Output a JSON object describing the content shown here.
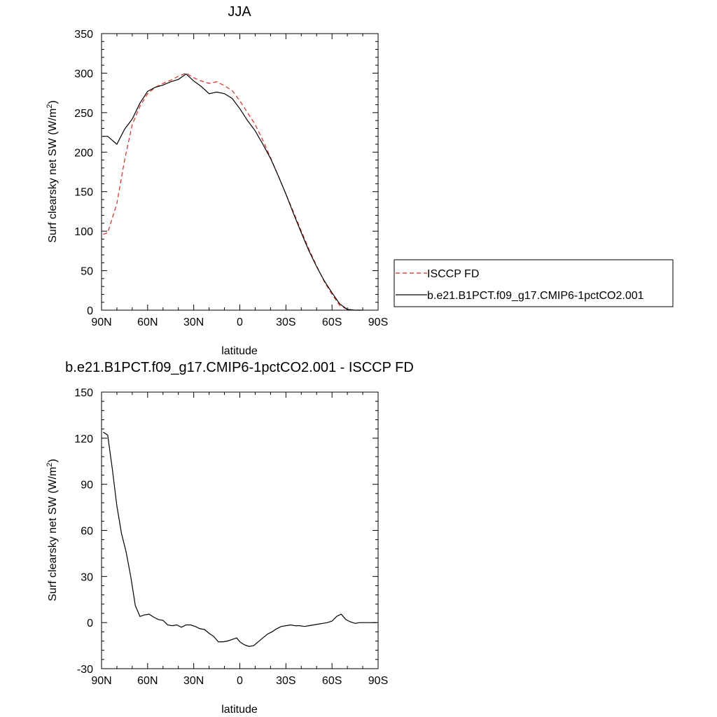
{
  "chart_data": [
    {
      "type": "line",
      "title": "JJA",
      "xlabel": "latitude",
      "ylabel": "Surf clearsky net SW (W/m",
      "ylabel_sup": "2",
      "ylabel_close": ")",
      "xlim": [
        90,
        -90
      ],
      "ylim": [
        0,
        350
      ],
      "x_ticks": [
        {
          "v": 90,
          "label": "90N"
        },
        {
          "v": 60,
          "label": "60N"
        },
        {
          "v": 30,
          "label": "30N"
        },
        {
          "v": 0,
          "label": "0"
        },
        {
          "v": -30,
          "label": "30S"
        },
        {
          "v": -60,
          "label": "60S"
        },
        {
          "v": -90,
          "label": "90S"
        }
      ],
      "y_ticks": [
        {
          "v": 0,
          "label": "0"
        },
        {
          "v": 50,
          "label": "50"
        },
        {
          "v": 100,
          "label": "100"
        },
        {
          "v": 150,
          "label": "150"
        },
        {
          "v": 200,
          "label": "200"
        },
        {
          "v": 250,
          "label": "250"
        },
        {
          "v": 300,
          "label": "300"
        },
        {
          "v": 350,
          "label": "350"
        }
      ],
      "legend": "right",
      "series": [
        {
          "name": "ISCCP FD",
          "color": "#e8261b",
          "dash": true,
          "x": [
            89,
            86,
            80,
            75,
            70,
            65,
            60,
            55,
            50,
            45,
            40,
            35,
            30,
            25,
            20,
            15,
            10,
            5,
            0,
            -5,
            -10,
            -15,
            -20,
            -25,
            -30,
            -35,
            -40,
            -45,
            -50,
            -55,
            -60,
            -65,
            -70,
            -75,
            -80
          ],
          "y": [
            96,
            98,
            135,
            190,
            235,
            258,
            274,
            282,
            287,
            291,
            296,
            300,
            294,
            290,
            287,
            289,
            284,
            278,
            265,
            250,
            235,
            215,
            193,
            170,
            147,
            124,
            100,
            77,
            56,
            36,
            20,
            6,
            1,
            0,
            0
          ]
        },
        {
          "name": "b.e21.B1PCT.f09_g17.CMIP6-1pctCO2.001",
          "color": "#000000",
          "dash": false,
          "x": [
            89,
            86,
            80,
            75,
            70,
            65,
            60,
            55,
            50,
            45,
            40,
            35,
            30,
            25,
            20,
            15,
            10,
            5,
            0,
            -5,
            -10,
            -15,
            -20,
            -25,
            -30,
            -35,
            -40,
            -45,
            -50,
            -55,
            -60,
            -65,
            -70,
            -75,
            -80
          ],
          "y": [
            220,
            220,
            210,
            229,
            242,
            262,
            277,
            282,
            285,
            289,
            292,
            299,
            290,
            283,
            274,
            276,
            274,
            268,
            255,
            240,
            227,
            210,
            192,
            170,
            147,
            122,
            98,
            75,
            55,
            37,
            22,
            8,
            1,
            0,
            0
          ]
        }
      ]
    },
    {
      "type": "line",
      "title": "b.e21.B1PCT.f09_g17.CMIP6-1pctCO2.001 - ISCCP FD",
      "xlabel": "latitude",
      "ylabel": "Surf clearsky net SW (W/m",
      "ylabel_sup": "2",
      "ylabel_close": ")",
      "xlim": [
        90,
        -90
      ],
      "ylim": [
        -30,
        150
      ],
      "x_ticks": [
        {
          "v": 90,
          "label": "90N"
        },
        {
          "v": 60,
          "label": "60N"
        },
        {
          "v": 30,
          "label": "30N"
        },
        {
          "v": 0,
          "label": "0"
        },
        {
          "v": -30,
          "label": "30S"
        },
        {
          "v": -60,
          "label": "60S"
        },
        {
          "v": -90,
          "label": "90S"
        }
      ],
      "y_ticks": [
        {
          "v": -30,
          "label": "-30"
        },
        {
          "v": 0,
          "label": "0"
        },
        {
          "v": 30,
          "label": "30"
        },
        {
          "v": 60,
          "label": "60"
        },
        {
          "v": 90,
          "label": "90"
        },
        {
          "v": 120,
          "label": "120"
        },
        {
          "v": 150,
          "label": "150"
        }
      ],
      "series": [
        {
          "name": "",
          "color": "#000000",
          "dash": false,
          "x": [
            89,
            86,
            83,
            80,
            77,
            74,
            71,
            68,
            65,
            62,
            59,
            56,
            53,
            50,
            47,
            44,
            41,
            38,
            35,
            32,
            29,
            26,
            23,
            20,
            17,
            14,
            11,
            8,
            5,
            2,
            0,
            -3,
            -6,
            -9,
            -12,
            -15,
            -18,
            -21,
            -24,
            -27,
            -30,
            -33,
            -36,
            -39,
            -42,
            -45,
            -48,
            -51,
            -54,
            -57,
            -60,
            -63,
            -66,
            -69,
            -72,
            -75,
            -78,
            -81,
            -84,
            -87,
            -89
          ],
          "y": [
            124,
            122,
            100,
            76,
            58,
            46,
            30,
            11,
            4,
            5,
            5.5,
            3.5,
            2,
            1.5,
            -1.5,
            -2,
            -1.5,
            -3,
            -1.5,
            -1.5,
            -2.5,
            -4,
            -4.5,
            -7,
            -9,
            -12.5,
            -12.5,
            -12,
            -11,
            -10,
            -12.5,
            -14.5,
            -15.5,
            -15,
            -12.5,
            -10,
            -7.5,
            -6,
            -4,
            -2.5,
            -2,
            -1.5,
            -2,
            -2,
            -2.5,
            -2,
            -1.5,
            -1,
            -0.5,
            0,
            1,
            4,
            5.5,
            2,
            0.5,
            -0.5,
            0,
            0,
            0,
            0,
            0
          ]
        }
      ]
    }
  ]
}
